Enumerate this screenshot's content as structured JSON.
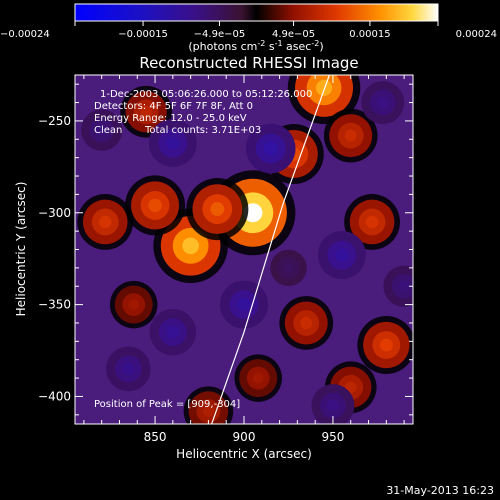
{
  "chart_data": {
    "type": "heatmap",
    "title": "Reconstructed RHESSI Image",
    "xlabel": "Heliocentric X (arcsec)",
    "ylabel": "Heliocentric Y (arcsec)",
    "xlim": [
      805,
      995
    ],
    "ylim": [
      -415,
      -225
    ],
    "x_ticks": [
      850,
      900,
      950
    ],
    "y_ticks": [
      -400,
      -350,
      -300,
      -250
    ],
    "colorbar": {
      "range": [
        -0.00024,
        0.00024
      ],
      "tick_values": [
        -0.00024,
        -0.00015,
        -4.9e-05,
        4.9e-05,
        0.00015,
        0.00024
      ],
      "tick_labels": [
        "-0.00024",
        "-0.00015",
        "−4.9e−05",
        "4.9e−05",
        "0.00015",
        "0.00024"
      ],
      "units_text": "(photons cm",
      "units_sup1": "-2",
      "units_mid1": " s",
      "units_sup2": "-1",
      "units_mid2": " asec",
      "units_sup3": "-2",
      "units_end": ")"
    },
    "annotations": {
      "time_range": "1-Dec-2003 05:06:26.000 to 05:12:26.000",
      "detectors": "Detectors: 4F 5F 6F 7F 8F, Att 0",
      "energy_range": "Energy Range: 12.0 - 25.0 keV",
      "method": "Clean",
      "total_counts": "Total counts: 3.71E+03",
      "peak_position": "Position of Peak = [909,-304]"
    },
    "peak": {
      "x": 909,
      "y": -304
    },
    "limb_line": [
      [
        880,
        -420
      ],
      [
        900,
        -365
      ],
      [
        922,
        -295
      ],
      [
        948,
        -225
      ]
    ],
    "emission_sources": [
      {
        "x": 905,
        "y": -300,
        "value": 0.00024
      },
      {
        "x": 870,
        "y": -318,
        "value": 0.00019
      },
      {
        "x": 850,
        "y": -296,
        "value": 0.00012
      },
      {
        "x": 885,
        "y": -298,
        "value": 0.00013
      },
      {
        "x": 945,
        "y": -232,
        "value": 0.00018
      },
      {
        "x": 928,
        "y": -268,
        "value": 0.00012
      },
      {
        "x": 972,
        "y": -305,
        "value": 0.0001
      },
      {
        "x": 960,
        "y": -258,
        "value": 9e-05
      },
      {
        "x": 822,
        "y": -305,
        "value": 0.0001
      },
      {
        "x": 980,
        "y": -372,
        "value": 0.00011
      },
      {
        "x": 935,
        "y": -360,
        "value": 9e-05
      },
      {
        "x": 880,
        "y": -408,
        "value": 7e-05
      },
      {
        "x": 845,
        "y": -245,
        "value": 8e-05
      },
      {
        "x": 960,
        "y": -395,
        "value": 8e-05
      },
      {
        "x": 838,
        "y": -350,
        "value": 6e-05
      },
      {
        "x": 908,
        "y": -390,
        "value": 6e-05
      },
      {
        "x": 860,
        "y": -262,
        "value": -0.00012
      },
      {
        "x": 915,
        "y": -265,
        "value": -0.00013
      },
      {
        "x": 955,
        "y": -323,
        "value": -0.00012
      },
      {
        "x": 900,
        "y": -350,
        "value": -0.00012
      },
      {
        "x": 860,
        "y": -365,
        "value": -0.00011
      },
      {
        "x": 950,
        "y": -405,
        "value": -9e-05
      },
      {
        "x": 835,
        "y": -385,
        "value": -0.0001
      },
      {
        "x": 978,
        "y": -240,
        "value": -9e-05
      },
      {
        "x": 990,
        "y": -340,
        "value": -8e-05
      },
      {
        "x": 820,
        "y": -255,
        "value": -8e-05
      },
      {
        "x": 925,
        "y": -330,
        "value": -5e-05
      }
    ]
  },
  "footer": {
    "date": "31-May-2013 16:23"
  }
}
